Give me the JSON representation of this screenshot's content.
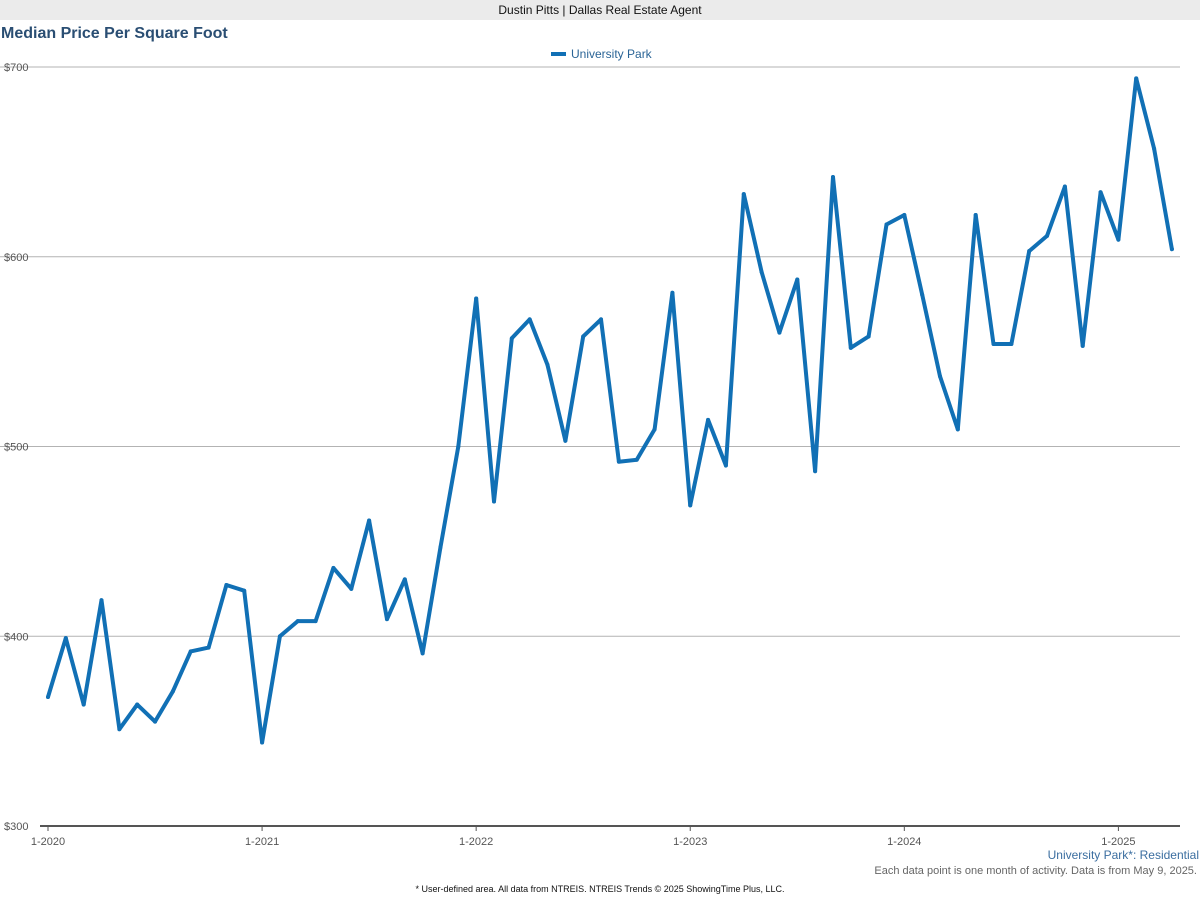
{
  "header": {
    "agent": "Dustin Pitts | Dallas Real Estate Agent"
  },
  "footer": {
    "area_label": "University Park*: Residential",
    "note": "Each data point is one month of activity. Data is from May 9, 2025.",
    "source": "* User-defined area. All data from NTREIS. NTREIS Trends © 2025 ShowingTime Plus, LLC."
  },
  "chart_data": {
    "type": "line",
    "title": "Median Price Per Square Foot",
    "xlabel": "",
    "ylabel": "",
    "ylim": [
      300,
      700
    ],
    "yticks": [
      300,
      400,
      500,
      600,
      700
    ],
    "ytick_labels": [
      "$300",
      "$400",
      "$500",
      "$600",
      "$700"
    ],
    "xticks": [
      "1-2020",
      "1-2021",
      "1-2022",
      "1-2023",
      "1-2024",
      "1-2025"
    ],
    "grid": true,
    "legend": "top-center",
    "colors": {
      "series": "#1170b5",
      "grid": "#b3b3b3",
      "axis": "#555555"
    },
    "x": [
      "1-2020",
      "2-2020",
      "3-2020",
      "4-2020",
      "5-2020",
      "6-2020",
      "7-2020",
      "8-2020",
      "9-2020",
      "10-2020",
      "11-2020",
      "12-2020",
      "1-2021",
      "2-2021",
      "3-2021",
      "4-2021",
      "5-2021",
      "6-2021",
      "7-2021",
      "8-2021",
      "9-2021",
      "10-2021",
      "11-2021",
      "12-2021",
      "1-2022",
      "2-2022",
      "3-2022",
      "4-2022",
      "5-2022",
      "6-2022",
      "7-2022",
      "8-2022",
      "9-2022",
      "10-2022",
      "11-2022",
      "12-2022",
      "1-2023",
      "2-2023",
      "3-2023",
      "4-2023",
      "5-2023",
      "6-2023",
      "7-2023",
      "8-2023",
      "9-2023",
      "10-2023",
      "11-2023",
      "12-2023",
      "1-2024",
      "2-2024",
      "3-2024",
      "4-2024",
      "5-2024",
      "6-2024",
      "7-2024",
      "8-2024",
      "9-2024",
      "10-2024",
      "11-2024",
      "12-2024",
      "1-2025",
      "2-2025",
      "3-2025",
      "4-2025"
    ],
    "series": [
      {
        "name": "University Park",
        "values": [
          368,
          399,
          364,
          419,
          351,
          364,
          355,
          371,
          392,
          394,
          427,
          424,
          344,
          400,
          408,
          408,
          436,
          425,
          461,
          409,
          430,
          391,
          447,
          500,
          578,
          471,
          557,
          567,
          543,
          503,
          558,
          567,
          492,
          493,
          509,
          581,
          469,
          514,
          490,
          633,
          592,
          560,
          588,
          487,
          642,
          552,
          558,
          617,
          622,
          580,
          537,
          509,
          622,
          554,
          554,
          603,
          611,
          637,
          553,
          634,
          609,
          694,
          657,
          604
        ]
      }
    ]
  }
}
